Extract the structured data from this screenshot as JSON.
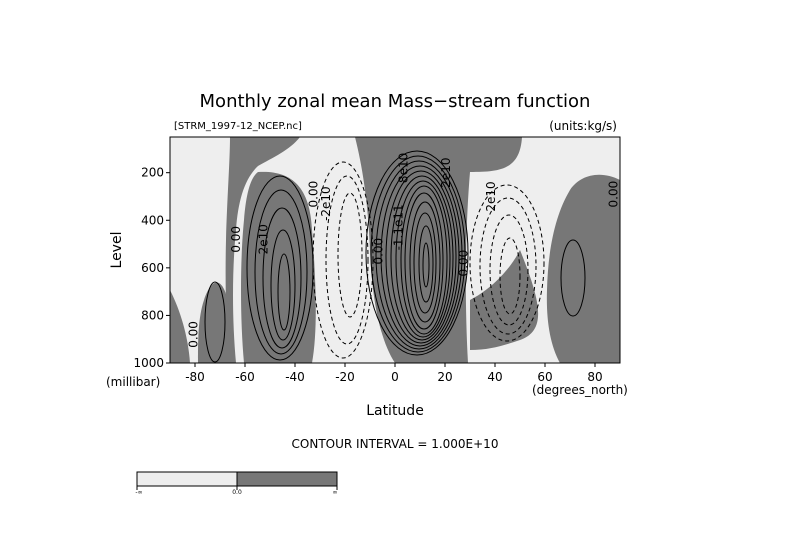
{
  "chart_data": {
    "type": "contour",
    "title": "Monthly zonal mean Mass−stream function",
    "file_label": "[STRM_1997-12_NCEP.nc]",
    "units_label": "(units:kg/s)",
    "xlabel": "Latitude",
    "x_units": "(degrees_north)",
    "ylabel": "Level",
    "y_units": "(millibar)",
    "xlim": [
      -90,
      90
    ],
    "ylim": [
      1000,
      50
    ],
    "x_ticks": [
      -80,
      -60,
      -40,
      -20,
      0,
      20,
      40,
      60,
      80
    ],
    "y_ticks": [
      200,
      400,
      600,
      800,
      1000
    ],
    "contour_interval_text": "CONTOUR INTERVAL = 1.000E+10",
    "contour_interval": 10000000000.0,
    "colors": {
      "negative_fill": "#eeeeee",
      "positive_fill": "#777777",
      "line": "#000000"
    },
    "colorbar": {
      "ticks": [
        "-∞",
        "0.0",
        "∞"
      ]
    },
    "contour_labels": [
      {
        "text": "0.00",
        "lat": -62,
        "p": 480
      },
      {
        "text": "2e10",
        "lat": -51,
        "p": 480
      },
      {
        "text": "0.00",
        "lat": -31,
        "p": 290
      },
      {
        "text": "-2e10",
        "lat": -26,
        "p": 330
      },
      {
        "text": "0.00",
        "lat": -5,
        "p": 530
      },
      {
        "text": "-1.1e11",
        "lat": 3,
        "p": 430
      },
      {
        "text": "8e10",
        "lat": 5,
        "p": 180
      },
      {
        "text": "2e10",
        "lat": 22,
        "p": 200
      },
      {
        "text": "0.00",
        "lat": 29,
        "p": 580
      },
      {
        "text": "2e10",
        "lat": 40,
        "p": 300
      },
      {
        "text": "0.00",
        "lat": 89,
        "p": 290
      },
      {
        "text": "0.00",
        "lat": -79,
        "p": 880
      }
    ]
  }
}
